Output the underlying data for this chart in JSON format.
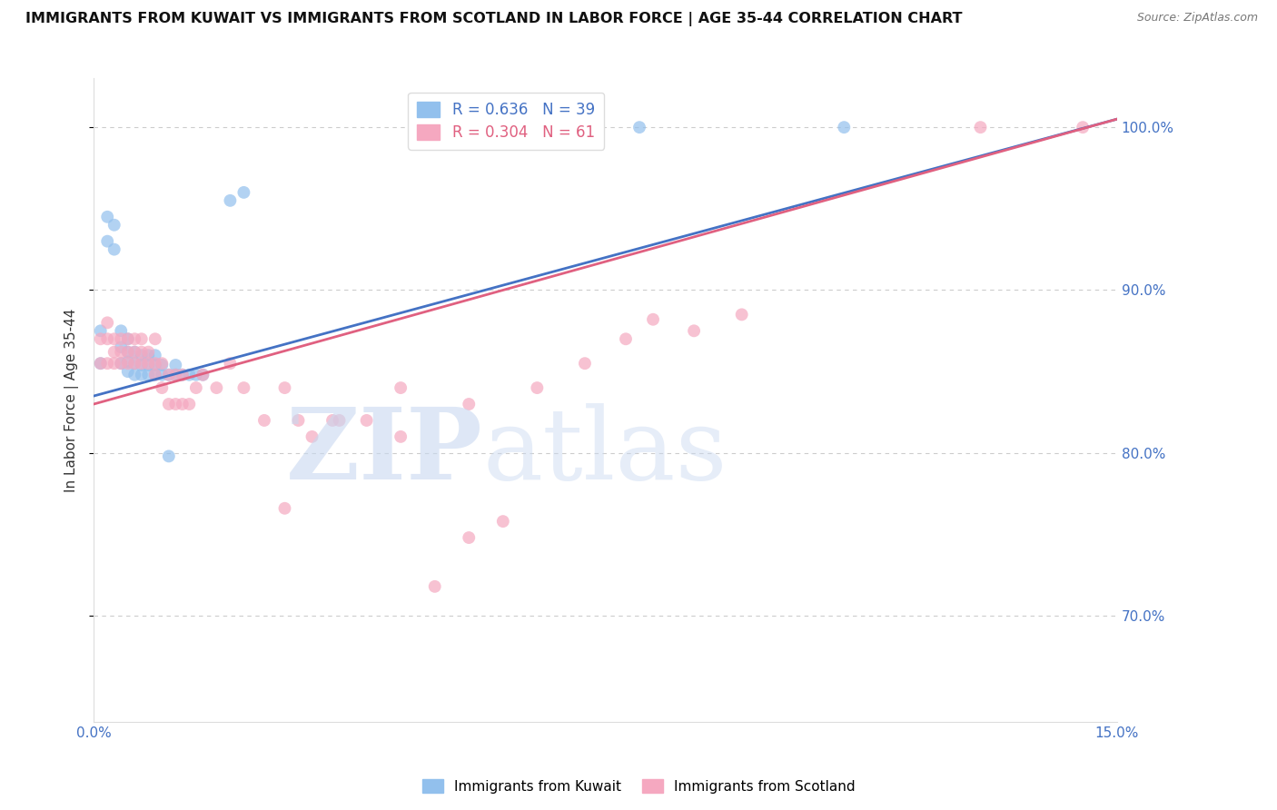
{
  "title": "IMMIGRANTS FROM KUWAIT VS IMMIGRANTS FROM SCOTLAND IN LABOR FORCE | AGE 35-44 CORRELATION CHART",
  "source": "Source: ZipAtlas.com",
  "ylabel": "In Labor Force | Age 35-44",
  "xlim": [
    0.0,
    0.15
  ],
  "ylim": [
    0.635,
    1.03
  ],
  "xticks": [
    0.0,
    0.03,
    0.06,
    0.09,
    0.12,
    0.15
  ],
  "xticklabels": [
    "0.0%",
    "",
    "",
    "",
    "",
    "15.0%"
  ],
  "yticks": [
    0.7,
    0.8,
    0.9,
    1.0
  ],
  "yticklabels": [
    "70.0%",
    "80.0%",
    "90.0%",
    "100.0%"
  ],
  "kuwait_color": "#92C0ED",
  "scotland_color": "#F5A8C0",
  "kuwait_line_color": "#4472C4",
  "scotland_line_color": "#E06080",
  "kuwait_R": 0.636,
  "kuwait_N": 39,
  "scotland_R": 0.304,
  "scotland_N": 61,
  "kuwait_x": [
    0.001,
    0.001,
    0.002,
    0.002,
    0.003,
    0.003,
    0.004,
    0.004,
    0.004,
    0.005,
    0.005,
    0.005,
    0.005,
    0.006,
    0.006,
    0.006,
    0.007,
    0.007,
    0.007,
    0.008,
    0.008,
    0.008,
    0.009,
    0.009,
    0.009,
    0.01,
    0.01,
    0.011,
    0.011,
    0.012,
    0.012,
    0.013,
    0.014,
    0.015,
    0.016,
    0.02,
    0.022,
    0.08,
    0.11
  ],
  "kuwait_y": [
    0.855,
    0.875,
    0.93,
    0.945,
    0.925,
    0.94,
    0.855,
    0.865,
    0.875,
    0.85,
    0.856,
    0.862,
    0.87,
    0.848,
    0.855,
    0.862,
    0.848,
    0.854,
    0.86,
    0.848,
    0.854,
    0.86,
    0.848,
    0.854,
    0.86,
    0.848,
    0.854,
    0.848,
    0.798,
    0.848,
    0.854,
    0.848,
    0.848,
    0.848,
    0.848,
    0.955,
    0.96,
    1.0,
    1.0
  ],
  "scotland_x": [
    0.001,
    0.001,
    0.002,
    0.002,
    0.002,
    0.003,
    0.003,
    0.003,
    0.004,
    0.004,
    0.004,
    0.005,
    0.005,
    0.005,
    0.006,
    0.006,
    0.006,
    0.007,
    0.007,
    0.007,
    0.008,
    0.008,
    0.009,
    0.009,
    0.009,
    0.01,
    0.01,
    0.011,
    0.011,
    0.012,
    0.012,
    0.013,
    0.013,
    0.014,
    0.015,
    0.016,
    0.018,
    0.02,
    0.022,
    0.025,
    0.028,
    0.03,
    0.035,
    0.04,
    0.045,
    0.05,
    0.055,
    0.06,
    0.065,
    0.072,
    0.078,
    0.082,
    0.088,
    0.095,
    0.028,
    0.032,
    0.036,
    0.045,
    0.055,
    0.13,
    0.145
  ],
  "scotland_y": [
    0.855,
    0.87,
    0.855,
    0.87,
    0.88,
    0.855,
    0.862,
    0.87,
    0.855,
    0.862,
    0.87,
    0.855,
    0.862,
    0.87,
    0.855,
    0.862,
    0.87,
    0.855,
    0.862,
    0.87,
    0.855,
    0.862,
    0.848,
    0.855,
    0.87,
    0.84,
    0.855,
    0.83,
    0.848,
    0.83,
    0.848,
    0.83,
    0.848,
    0.83,
    0.84,
    0.848,
    0.84,
    0.855,
    0.84,
    0.82,
    0.84,
    0.82,
    0.82,
    0.82,
    0.81,
    0.718,
    0.83,
    0.758,
    0.84,
    0.855,
    0.87,
    0.882,
    0.875,
    0.885,
    0.766,
    0.81,
    0.82,
    0.84,
    0.748,
    1.0,
    1.0
  ]
}
